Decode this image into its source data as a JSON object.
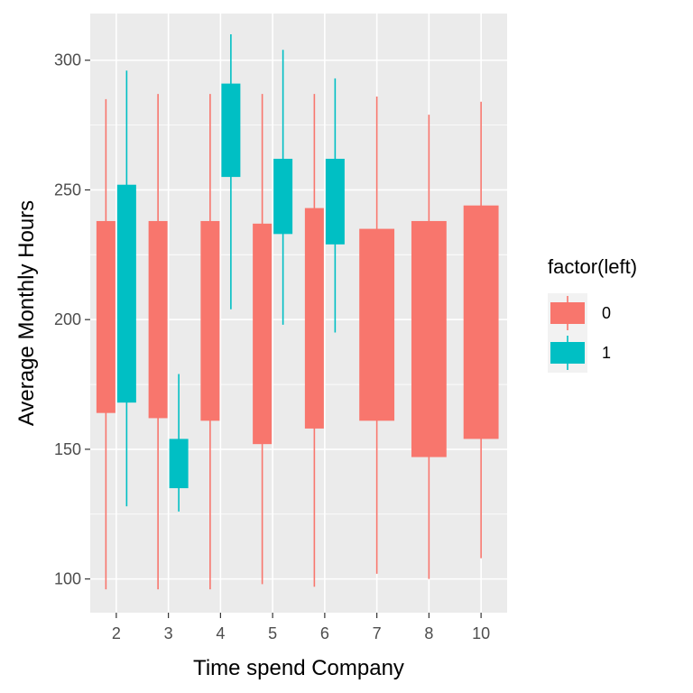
{
  "chart_data": {
    "type": "boxplot",
    "x_categories": [
      "2",
      "3",
      "4",
      "5",
      "6",
      "7",
      "8",
      "10"
    ],
    "xlabel": "Time spend Company",
    "ylabel": "Average Monthly Hours",
    "ylim": [
      87,
      318
    ],
    "yticks": [
      100,
      150,
      200,
      250,
      300
    ],
    "grid": true,
    "legend": {
      "title": "factor(left)",
      "position": "right",
      "entries": [
        {
          "key": "0",
          "label": "0",
          "color": "#F8766D"
        },
        {
          "key": "1",
          "label": "1",
          "color": "#00BFC4"
        }
      ]
    },
    "series": [
      {
        "key": "0",
        "color": "#F8766D",
        "boxes": [
          {
            "x": "2",
            "min": 96,
            "q1": 164,
            "q3": 238,
            "max": 285
          },
          {
            "x": "3",
            "min": 96,
            "q1": 162,
            "q3": 238,
            "max": 287
          },
          {
            "x": "4",
            "min": 96,
            "q1": 161,
            "q3": 238,
            "max": 287
          },
          {
            "x": "5",
            "min": 98,
            "q1": 152,
            "q3": 237,
            "max": 287
          },
          {
            "x": "6",
            "min": 97,
            "q1": 158,
            "q3": 243,
            "max": 287
          },
          {
            "x": "7",
            "min": 102,
            "q1": 161,
            "q3": 235,
            "max": 286
          },
          {
            "x": "8",
            "min": 100,
            "q1": 147,
            "q3": 238,
            "max": 279
          },
          {
            "x": "10",
            "min": 108,
            "q1": 154,
            "q3": 244,
            "max": 284
          }
        ]
      },
      {
        "key": "1",
        "color": "#00BFC4",
        "boxes": [
          {
            "x": "2",
            "min": 128,
            "q1": 168,
            "q3": 252,
            "max": 296
          },
          {
            "x": "3",
            "min": 126,
            "q1": 135,
            "q3": 154,
            "max": 179
          },
          {
            "x": "4",
            "min": 204,
            "q1": 255,
            "q3": 291,
            "max": 310
          },
          {
            "x": "5",
            "min": 198,
            "q1": 233,
            "q3": 262,
            "max": 304
          },
          {
            "x": "6",
            "min": 195,
            "q1": 229,
            "q3": 262,
            "max": 293
          }
        ]
      }
    ]
  }
}
